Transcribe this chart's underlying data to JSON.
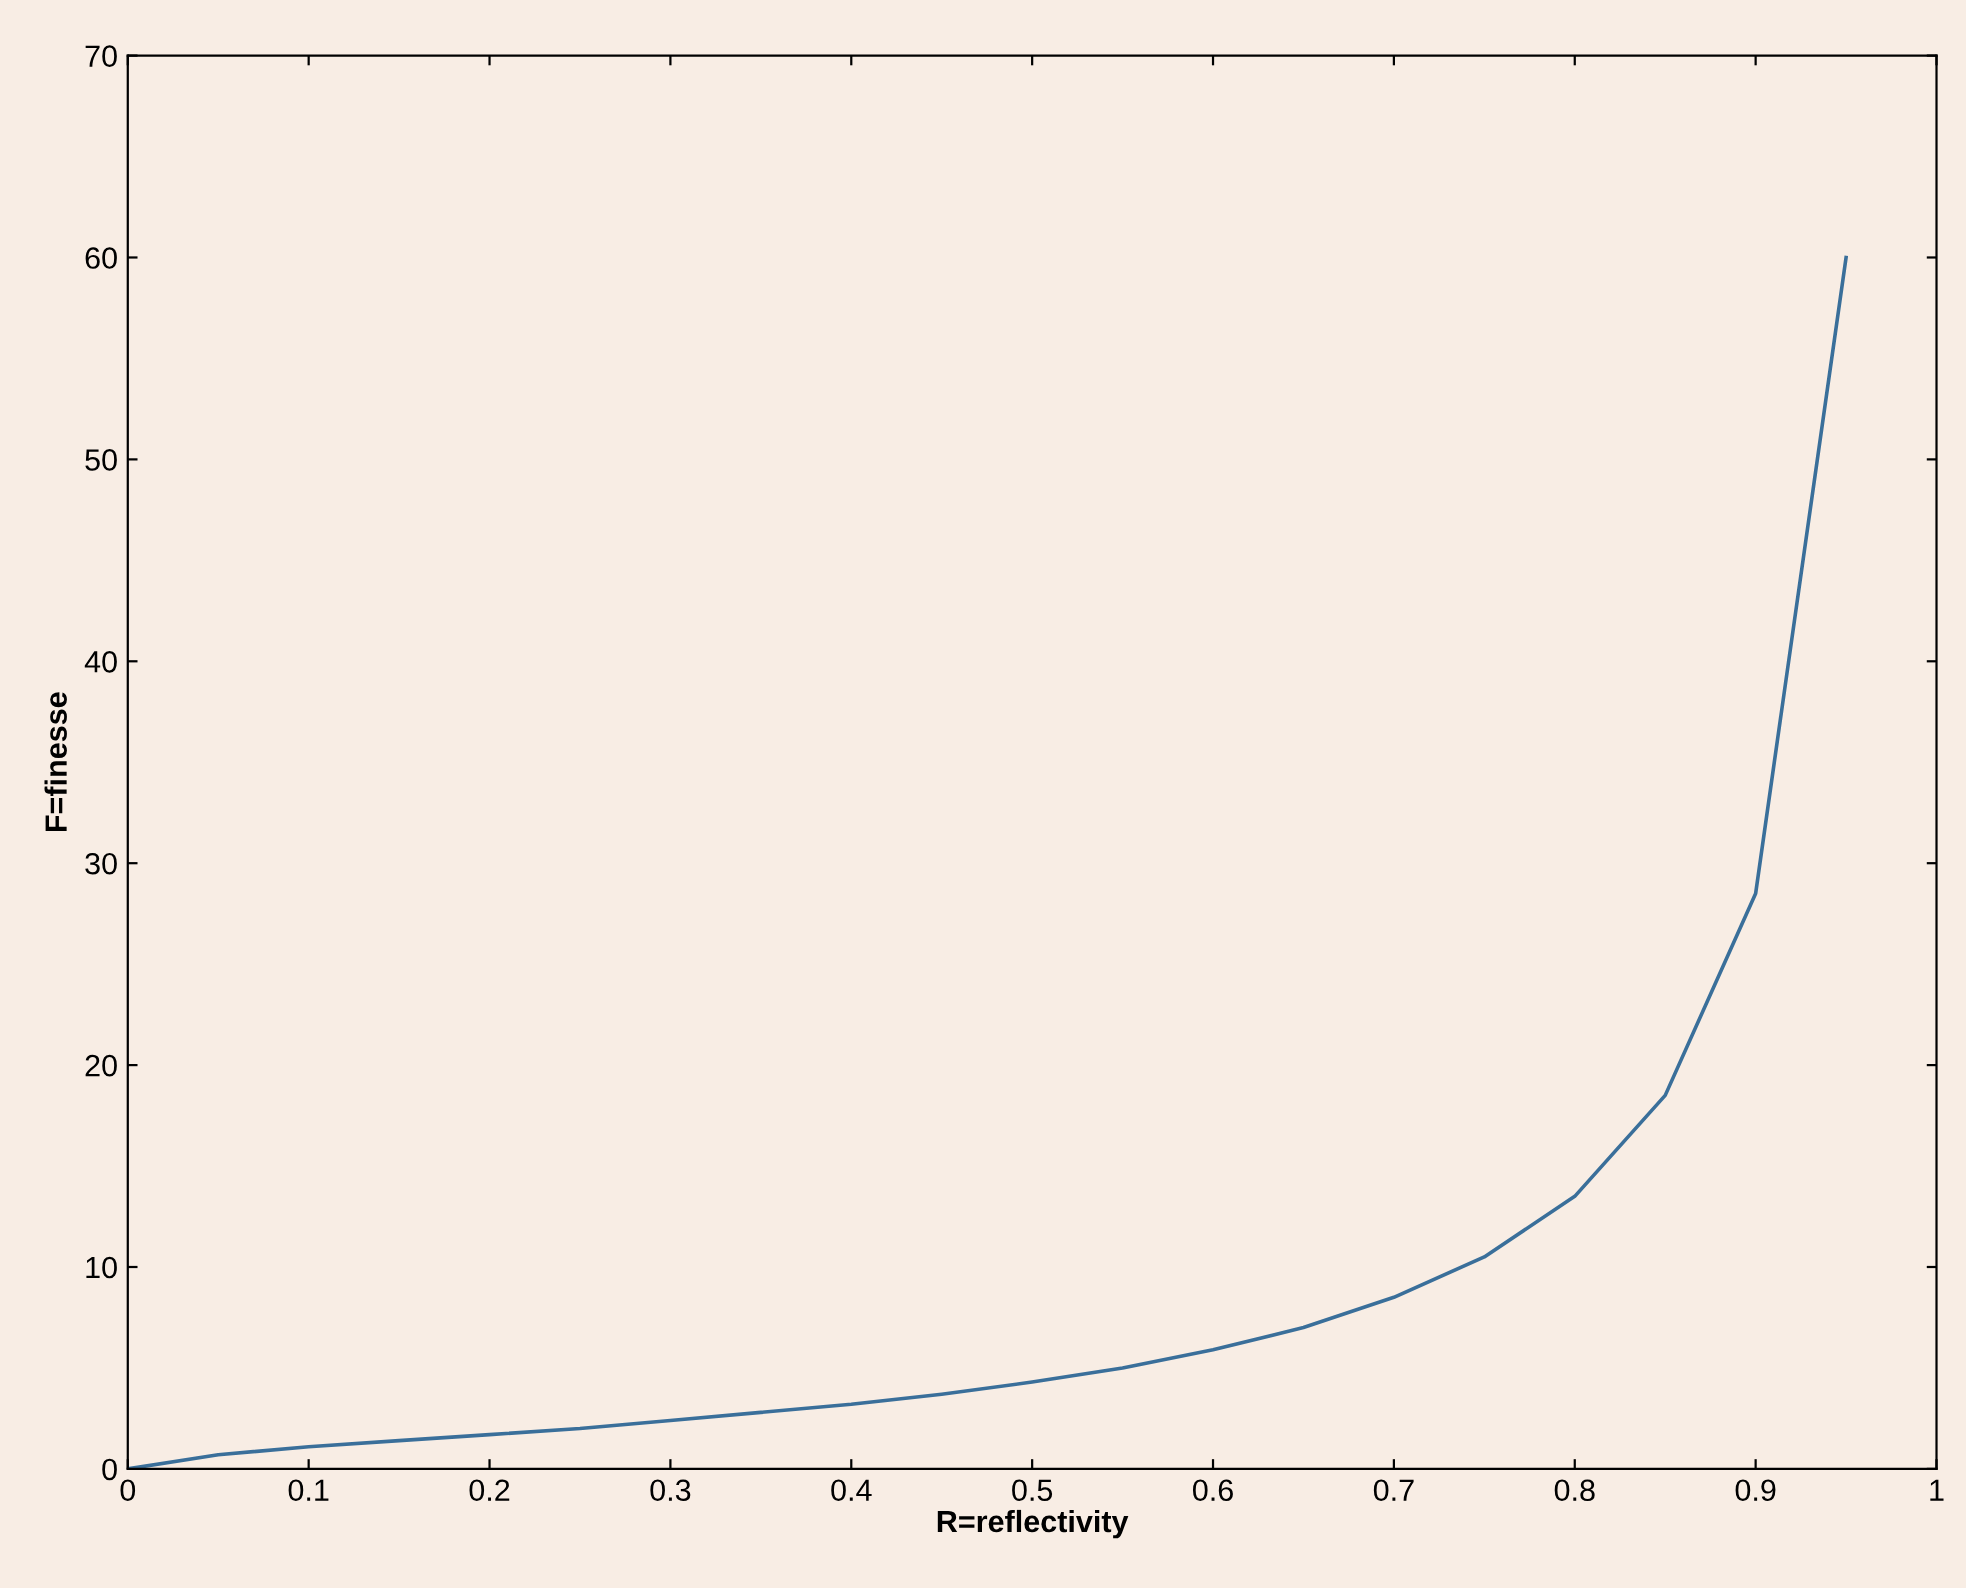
{
  "chart_data": {
    "type": "line",
    "xlabel": "R=reflectivity",
    "ylabel": "F=finesse",
    "x": [
      0,
      0.05,
      0.1,
      0.15,
      0.2,
      0.25,
      0.3,
      0.35,
      0.4,
      0.45,
      0.5,
      0.55,
      0.6,
      0.65,
      0.7,
      0.75,
      0.8,
      0.85,
      0.9,
      0.95
    ],
    "series": [
      {
        "color": "#3a6f9a",
        "values": [
          0,
          0.7,
          1.1,
          1.4,
          1.7,
          2,
          2.4,
          2.8,
          3.2,
          3.7,
          4.3,
          5,
          5.9,
          7,
          8.5,
          10.5,
          13.5,
          18.5,
          28.5,
          60
        ]
      }
    ],
    "xlim": [
      0,
      1
    ],
    "ylim": [
      0,
      70
    ],
    "xticks": [
      0,
      0.1,
      0.2,
      0.3,
      0.4,
      0.5,
      0.6,
      0.7,
      0.8,
      0.9,
      1
    ],
    "yticks": [
      0,
      10,
      20,
      30,
      40,
      50,
      60,
      70
    ],
    "grid": false,
    "legend": false,
    "marker": "none",
    "line_style": "solid"
  }
}
